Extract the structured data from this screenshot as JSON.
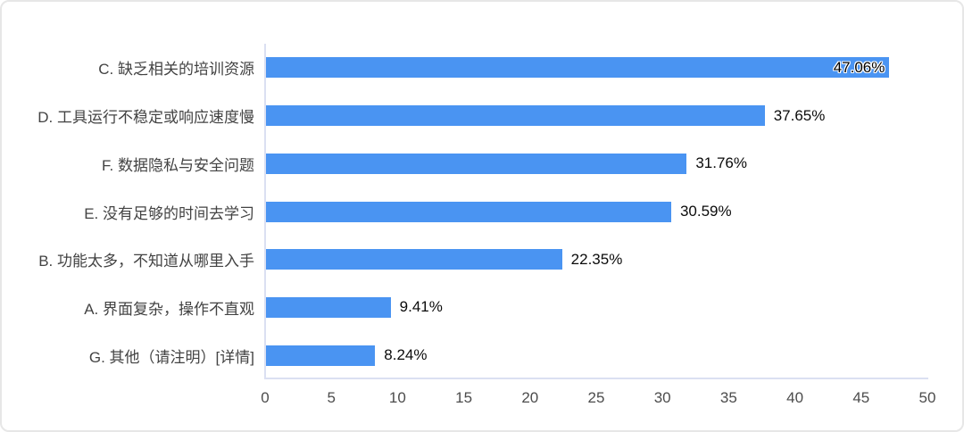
{
  "chart_data": {
    "type": "bar",
    "orientation": "horizontal",
    "title": "",
    "xlabel": "",
    "ylabel": "",
    "categories": [
      "C. 缺乏相关的培训资源",
      "D. 工具运行不稳定或响应速度慢",
      "F. 数据隐私与安全问题",
      "E. 没有足够的时间去学习",
      "B. 功能太多，不知道从哪里入手",
      "A. 界面复杂，操作不直观",
      "G. 其他（请注明）[详情]"
    ],
    "values": [
      47.06,
      37.65,
      31.76,
      30.59,
      22.35,
      9.41,
      8.24
    ],
    "value_labels": [
      "47.06%",
      "37.65%",
      "31.76%",
      "30.59%",
      "22.35%",
      "9.41%",
      "8.24%"
    ],
    "label_inside": [
      true,
      false,
      false,
      false,
      false,
      false,
      false
    ],
    "x_ticks": [
      "0",
      "5",
      "10",
      "15",
      "20",
      "25",
      "30",
      "35",
      "40",
      "45",
      "50"
    ],
    "xlim": [
      0,
      50
    ],
    "grid": false,
    "legend": "none",
    "bar_color": "#4a94f2",
    "axis_line_color": "#dbe0f2",
    "category_label_color": "#434343",
    "tick_label_color": "#4c4c4c",
    "value_label_color": "#0b0b0b"
  }
}
